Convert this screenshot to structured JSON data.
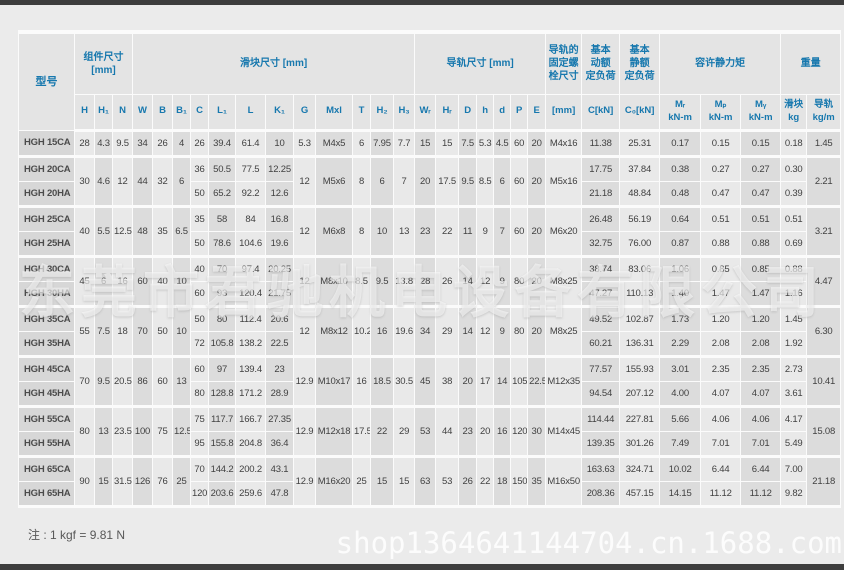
{
  "page": {
    "footnote": "注 : 1 kgf = 9.81 N"
  },
  "watermarks": {
    "center": "东莞市君驰机电设备有限公司",
    "shop": "shop1364641144704.cn.1688.com"
  },
  "table": {
    "model_header": "型号",
    "group_headers": [
      {
        "label": "组件尺寸\n[mm]",
        "span": 3
      },
      {
        "label": "滑块尺寸 [mm]",
        "span": 12
      },
      {
        "label": "导轨尺寸 [mm]",
        "span": 7
      },
      {
        "label": "导轨的\n固定螺\n栓尺寸",
        "span": 1
      },
      {
        "label": "基本\n动额\n定负荷",
        "span": 1
      },
      {
        "label": "基本\n静额\n定负荷",
        "span": 1
      },
      {
        "label": "容许静力矩",
        "span": 3
      },
      {
        "label": "重量",
        "span": 2
      }
    ],
    "sub_headers": [
      "H",
      "H₁",
      "N",
      "W",
      "B",
      "B₁",
      "C",
      "L₁",
      "L",
      "K₁",
      "G",
      "Mxl",
      "T",
      "H₂",
      "H₃",
      "Wᵣ",
      "Hᵣ",
      "D",
      "h",
      "d",
      "P",
      "E",
      "[mm]",
      "C[kN]",
      "C₀[kN]",
      "Mᵣ\nkN-m",
      "Mₚ\nkN-m",
      "Mᵧ\nkN-m",
      "滑块\nkg",
      "导轨\nkg/m"
    ],
    "groups": [
      {
        "models": [
          "HGH 15CA"
        ],
        "dims": [
          "28",
          "4.3",
          "9.5",
          "34",
          "26",
          "4"
        ],
        "blocks": [
          [
            "26",
            "39.4",
            "61.4",
            "10"
          ]
        ],
        "rail": [
          "5.3",
          "M4x5",
          "6",
          "7.95",
          "7.7",
          "15",
          "15",
          "7.5",
          "5.3",
          "4.5",
          "60",
          "20",
          "M4x16"
        ],
        "loads": [
          [
            "11.38",
            "25.31",
            "0.17",
            "0.15",
            "0.15",
            "0.18"
          ]
        ],
        "rail_weight": "1.45"
      },
      {
        "models": [
          "HGH 20CA",
          "HGH 20HA"
        ],
        "dims": [
          "30",
          "4.6",
          "12",
          "44",
          "32",
          "6"
        ],
        "blocks": [
          [
            "36",
            "50.5",
            "77.5",
            "12.25"
          ],
          [
            "50",
            "65.2",
            "92.2",
            "12.6"
          ]
        ],
        "rail": [
          "12",
          "M5x6",
          "8",
          "6",
          "7",
          "20",
          "17.5",
          "9.5",
          "8.5",
          "6",
          "60",
          "20",
          "M5x16"
        ],
        "loads": [
          [
            "17.75",
            "37.84",
            "0.38",
            "0.27",
            "0.27",
            "0.30"
          ],
          [
            "21.18",
            "48.84",
            "0.48",
            "0.47",
            "0.47",
            "0.39"
          ]
        ],
        "rail_weight": "2.21"
      },
      {
        "models": [
          "HGH 25CA",
          "HGH 25HA"
        ],
        "dims": [
          "40",
          "5.5",
          "12.5",
          "48",
          "35",
          "6.5"
        ],
        "blocks": [
          [
            "35",
            "58",
            "84",
            "16.8"
          ],
          [
            "50",
            "78.6",
            "104.6",
            "19.6"
          ]
        ],
        "rail": [
          "12",
          "M6x8",
          "8",
          "10",
          "13",
          "23",
          "22",
          "11",
          "9",
          "7",
          "60",
          "20",
          "M6x20"
        ],
        "loads": [
          [
            "26.48",
            "56.19",
            "0.64",
            "0.51",
            "0.51",
            "0.51"
          ],
          [
            "32.75",
            "76.00",
            "0.87",
            "0.88",
            "0.88",
            "0.69"
          ]
        ],
        "rail_weight": "3.21"
      },
      {
        "models": [
          "HGH 30CA",
          "HGH 30HA"
        ],
        "dims": [
          "45",
          "6",
          "16",
          "60",
          "40",
          "10"
        ],
        "blocks": [
          [
            "40",
            "70",
            "97.4",
            "20.25"
          ],
          [
            "60",
            "93",
            "120.4",
            "21.75"
          ]
        ],
        "rail": [
          "12",
          "M8x10",
          "8.5",
          "9.5",
          "13.8",
          "28",
          "26",
          "14",
          "12",
          "9",
          "80",
          "20",
          "M8x25"
        ],
        "loads": [
          [
            "38.74",
            "83.06",
            "1.06",
            "0.85",
            "0.85",
            "0.88"
          ],
          [
            "47.27",
            "110.13",
            "1.40",
            "1.47",
            "1.47",
            "1.16"
          ]
        ],
        "rail_weight": "4.47"
      },
      {
        "models": [
          "HGH 35CA",
          "HGH 35HA"
        ],
        "dims": [
          "55",
          "7.5",
          "18",
          "70",
          "50",
          "10"
        ],
        "blocks": [
          [
            "50",
            "80",
            "112.4",
            "20.6"
          ],
          [
            "72",
            "105.8",
            "138.2",
            "22.5"
          ]
        ],
        "rail": [
          "12",
          "M8x12",
          "10.2",
          "16",
          "19.6",
          "34",
          "29",
          "14",
          "12",
          "9",
          "80",
          "20",
          "M8x25"
        ],
        "loads": [
          [
            "49.52",
            "102.87",
            "1.73",
            "1.20",
            "1.20",
            "1.45"
          ],
          [
            "60.21",
            "136.31",
            "2.29",
            "2.08",
            "2.08",
            "1.92"
          ]
        ],
        "rail_weight": "6.30"
      },
      {
        "models": [
          "HGH 45CA",
          "HGH 45HA"
        ],
        "dims": [
          "70",
          "9.5",
          "20.5",
          "86",
          "60",
          "13"
        ],
        "blocks": [
          [
            "60",
            "97",
            "139.4",
            "23"
          ],
          [
            "80",
            "128.8",
            "171.2",
            "28.9"
          ]
        ],
        "rail": [
          "12.9",
          "M10x17",
          "16",
          "18.5",
          "30.5",
          "45",
          "38",
          "20",
          "17",
          "14",
          "105",
          "22.5",
          "M12x35"
        ],
        "loads": [
          [
            "77.57",
            "155.93",
            "3.01",
            "2.35",
            "2.35",
            "2.73"
          ],
          [
            "94.54",
            "207.12",
            "4.00",
            "4.07",
            "4.07",
            "3.61"
          ]
        ],
        "rail_weight": "10.41"
      },
      {
        "models": [
          "HGH 55CA",
          "HGH 55HA"
        ],
        "dims": [
          "80",
          "13",
          "23.5",
          "100",
          "75",
          "12.5"
        ],
        "blocks": [
          [
            "75",
            "117.7",
            "166.7",
            "27.35"
          ],
          [
            "95",
            "155.8",
            "204.8",
            "36.4"
          ]
        ],
        "rail": [
          "12.9",
          "M12x18",
          "17.5",
          "22",
          "29",
          "53",
          "44",
          "23",
          "20",
          "16",
          "120",
          "30",
          "M14x45"
        ],
        "loads": [
          [
            "114.44",
            "227.81",
            "5.66",
            "4.06",
            "4.06",
            "4.17"
          ],
          [
            "139.35",
            "301.26",
            "7.49",
            "7.01",
            "7.01",
            "5.49"
          ]
        ],
        "rail_weight": "15.08"
      },
      {
        "models": [
          "HGH 65CA",
          "HGH 65HA"
        ],
        "dims": [
          "90",
          "15",
          "31.5",
          "126",
          "76",
          "25"
        ],
        "blocks": [
          [
            "70",
            "144.2",
            "200.2",
            "43.1"
          ],
          [
            "120",
            "203.6",
            "259.6",
            "47.8"
          ]
        ],
        "rail": [
          "12.9",
          "M16x20",
          "25",
          "15",
          "15",
          "63",
          "53",
          "26",
          "22",
          "18",
          "150",
          "35",
          "M16x50"
        ],
        "loads": [
          [
            "163.63",
            "324.71",
            "10.02",
            "6.44",
            "6.44",
            "7.00"
          ],
          [
            "208.36",
            "457.15",
            "14.15",
            "11.12",
            "11.12",
            "9.82"
          ]
        ],
        "rail_weight": "21.18"
      }
    ]
  }
}
